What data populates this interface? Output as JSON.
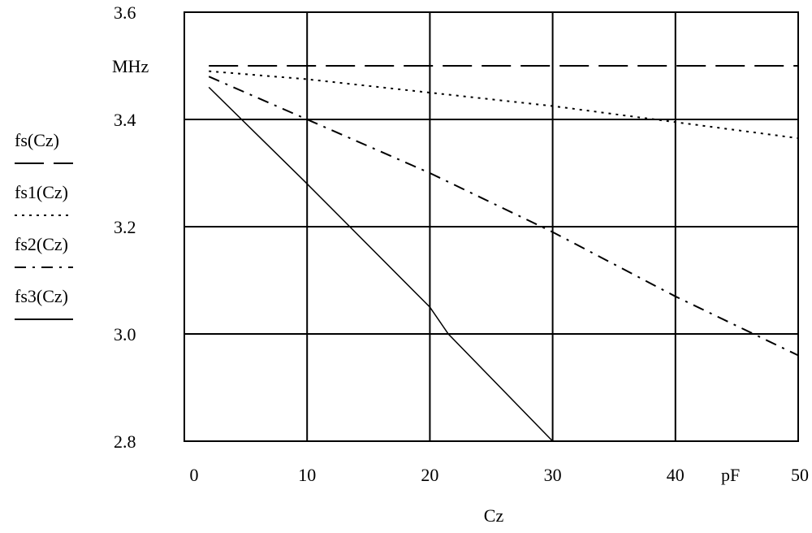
{
  "chart_data": {
    "type": "line",
    "xlabel": "Cz",
    "x_unit_label": "pF",
    "y_unit_label": "MHz",
    "xlim": [
      0,
      50
    ],
    "ylim": [
      2.8,
      3.6
    ],
    "x_ticks": [
      "0",
      "10",
      "20",
      "30",
      "40",
      "50"
    ],
    "y_ticks": [
      "3.6",
      "3.4",
      "3.2",
      "3.0",
      "2.8"
    ],
    "grid": true,
    "legend_position": "left",
    "series": [
      {
        "name": "fs(Cz)",
        "dash": "long-dash",
        "x": [
          2,
          10,
          20,
          30,
          40,
          50
        ],
        "y": [
          3.5,
          3.5,
          3.5,
          3.5,
          3.5,
          3.5
        ]
      },
      {
        "name": "fs1(Cz)",
        "dash": "dotted",
        "x": [
          2,
          10,
          20,
          30,
          40,
          50
        ],
        "y": [
          3.49,
          3.475,
          3.45,
          3.425,
          3.395,
          3.365
        ]
      },
      {
        "name": "fs2(Cz)",
        "dash": "dash-dot",
        "x": [
          2,
          10,
          20,
          30,
          40,
          50
        ],
        "y": [
          3.48,
          3.4,
          3.3,
          3.19,
          3.07,
          2.96
        ]
      },
      {
        "name": "fs3(Cz)",
        "dash": "solid",
        "x": [
          2,
          10,
          20,
          21.5,
          30
        ],
        "y": [
          3.46,
          3.28,
          3.05,
          3.0,
          2.8
        ]
      }
    ]
  }
}
